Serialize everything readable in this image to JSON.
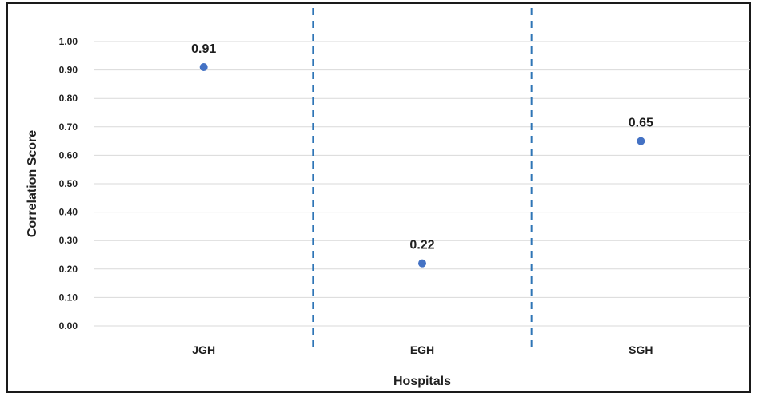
{
  "chart_data": {
    "type": "scatter",
    "title": "",
    "xlabel": "Hospitals",
    "ylabel": "Correlation Score",
    "categories": [
      "JGH",
      "EGH",
      "SGH"
    ],
    "series": [
      {
        "values": [
          0.91,
          0.22,
          0.65
        ],
        "labels": [
          "0.91",
          "0.22",
          "0.65"
        ]
      }
    ],
    "ylim": [
      0,
      1
    ],
    "yticks": [
      "0.00",
      "0.10",
      "0.20",
      "0.30",
      "0.40",
      "0.50",
      "0.60",
      "0.70",
      "0.80",
      "0.90",
      "1.00"
    ],
    "grid": "horizontal",
    "category_separators": "dashed",
    "legend": "none",
    "colors": {
      "marker": "#4472c4",
      "gridline": "#d9d9d9",
      "separator": "#2e75b6",
      "frame": "#1a1a1a"
    }
  }
}
